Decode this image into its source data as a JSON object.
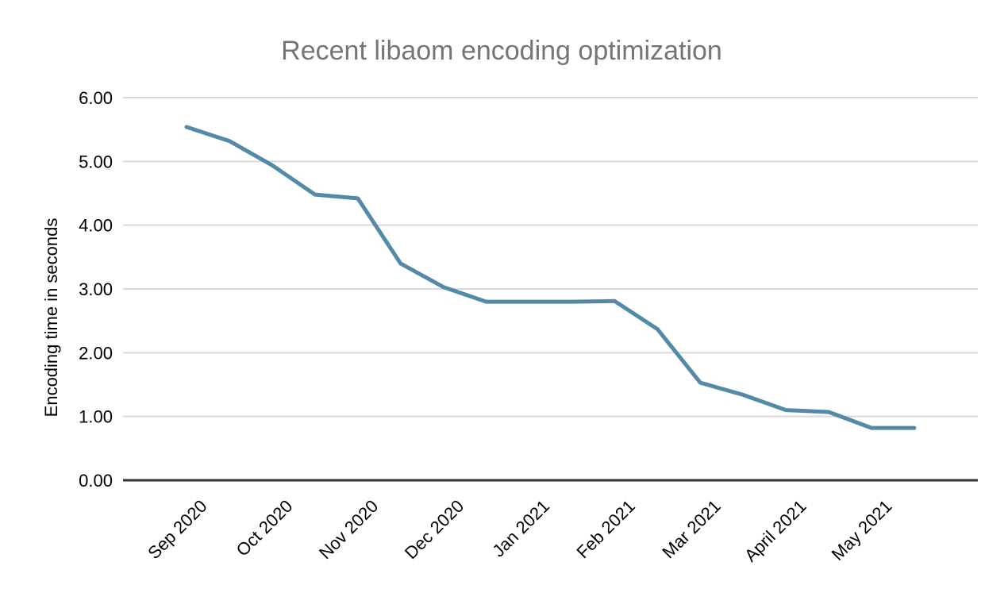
{
  "page": {
    "background": "#ffffff"
  },
  "chart_data": {
    "type": "line",
    "title": "Recent libaom encoding optimization",
    "xlabel": "",
    "ylabel": "Encoding time in seconds",
    "ylim": [
      0,
      6
    ],
    "y_tick_labels": [
      "0.00",
      "1.00",
      "2.00",
      "3.00",
      "4.00",
      "5.00",
      "6.00"
    ],
    "x_tick_labels": [
      "Sep 2020",
      "Oct 2020",
      "Nov 2020",
      "Dec 2020",
      "Jan 2021",
      "Feb 2021",
      "Mar 2021",
      "April 2021",
      "May 2021"
    ],
    "points_per_x_tick": 2,
    "grid": true,
    "legend_position": "none",
    "colors": {
      "line": "#5589a8",
      "gridline": "#d9d9d9",
      "axis_line": "#333333",
      "title_text": "#757575",
      "tick_text": "#000000"
    },
    "series": [
      {
        "values": [
          5.54,
          5.32,
          4.94,
          4.48,
          4.42,
          3.4,
          3.03,
          2.8,
          2.8,
          2.8,
          2.81,
          2.37,
          1.53,
          1.34,
          1.1,
          1.07,
          0.82,
          0.82
        ]
      }
    ]
  }
}
